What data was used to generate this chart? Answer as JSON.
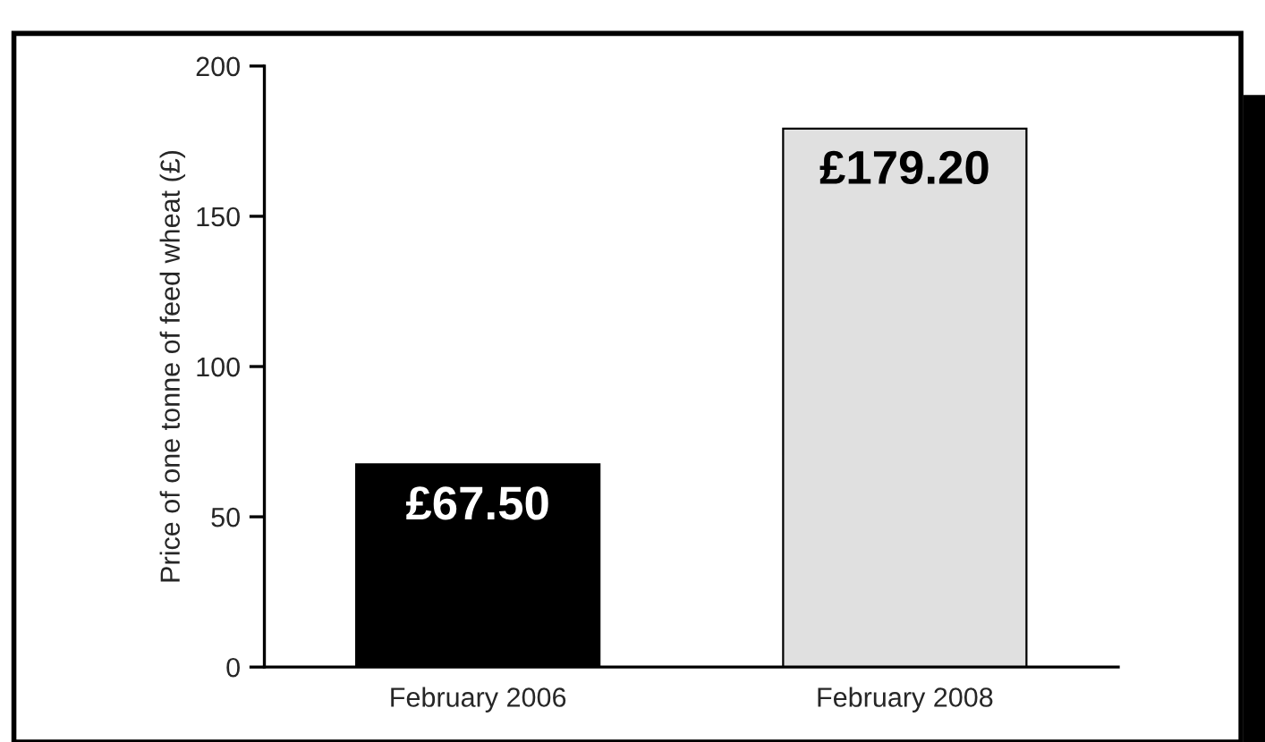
{
  "chart_data": {
    "type": "bar",
    "ylabel": "Price of one tonne of feed wheat (£)",
    "categories": [
      "February 2006",
      "February 2008"
    ],
    "values": [
      67.5,
      179.2
    ],
    "colors": [
      "#000000",
      "#e0e0e0"
    ],
    "value_labels": [
      "£67.50",
      "£179.20"
    ],
    "ylim": [
      0,
      200
    ],
    "yticks": [
      0,
      50,
      100,
      150,
      200
    ],
    "grid": false,
    "legend": false
  }
}
